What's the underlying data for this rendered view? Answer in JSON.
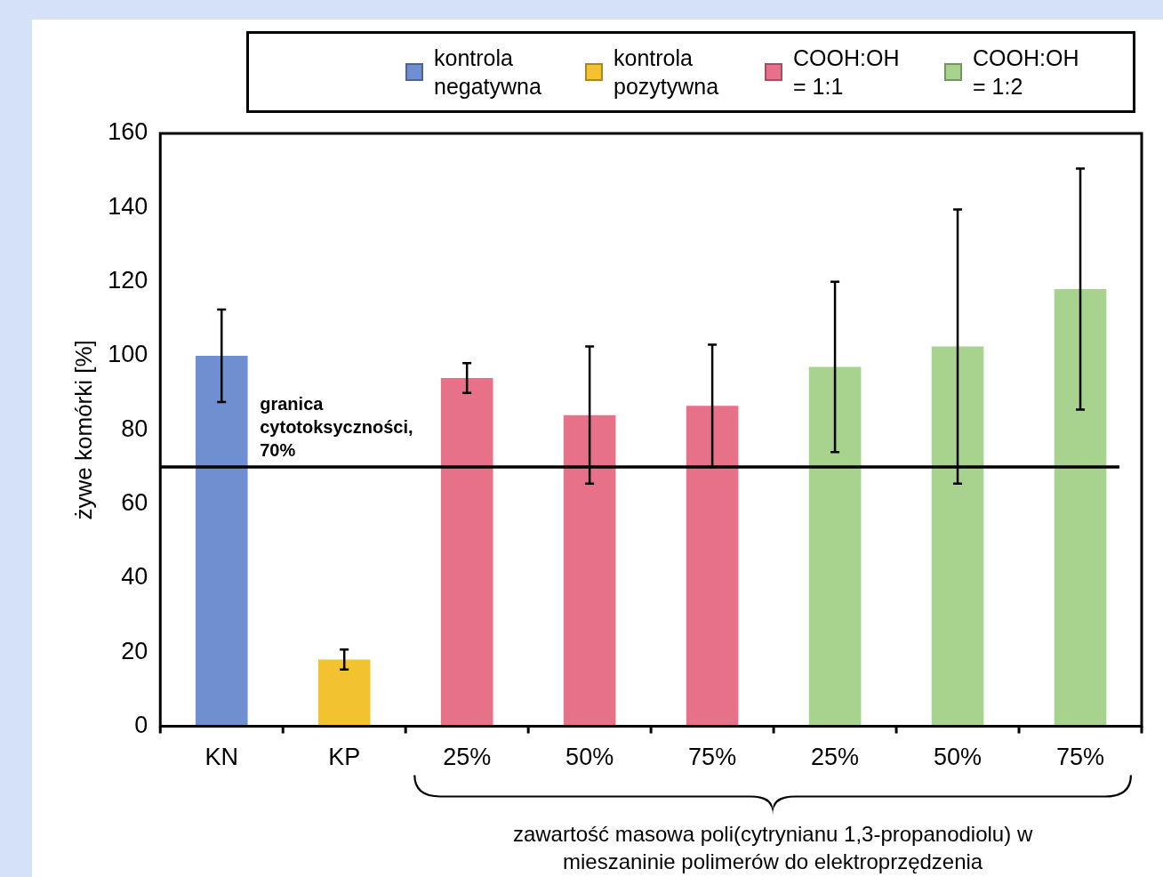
{
  "chart_data": {
    "type": "bar",
    "categories": [
      "KN",
      "KP",
      "25%",
      "50%",
      "75%",
      "25%",
      "50%",
      "75%"
    ],
    "ylabel": "żywe komórki [%]",
    "xlabel": "zawartość masowa poli(cytrynianu 1,3-propanodiolu) w mieszaninie polimerów do elektroprzędzenia",
    "ylim": [
      0,
      160
    ],
    "yticks": [
      0,
      20,
      40,
      60,
      80,
      100,
      120,
      140,
      160
    ],
    "grid": false,
    "legend": "top",
    "series": [
      {
        "name": "kontrola negatywna",
        "color": "#6f8fd0",
        "values": [
          100,
          null,
          null,
          null,
          null,
          null,
          null,
          null
        ],
        "errors": [
          12.5,
          null,
          null,
          null,
          null,
          null,
          null,
          null
        ]
      },
      {
        "name": "kontrola pozytywna",
        "color": "#f2c230",
        "values": [
          null,
          18,
          null,
          null,
          null,
          null,
          null,
          null
        ],
        "errors": [
          null,
          2.7,
          null,
          null,
          null,
          null,
          null,
          null
        ]
      },
      {
        "name": "COOH:OH = 1:1",
        "color": "#e8718a",
        "values": [
          null,
          null,
          94,
          84,
          86.5,
          null,
          null,
          null
        ],
        "errors": [
          null,
          null,
          4,
          18.5,
          16.5,
          null,
          null,
          null
        ]
      },
      {
        "name": "COOH:OH = 1:2",
        "color": "#a8d38e",
        "values": [
          null,
          null,
          null,
          null,
          null,
          97,
          102.5,
          118
        ],
        "errors": [
          null,
          null,
          null,
          null,
          null,
          23,
          37,
          32.5
        ]
      }
    ],
    "ref_lines": [
      {
        "axis": "y",
        "value": 70,
        "label": "granica cytotoksyczności, 70%",
        "color": "#000000"
      }
    ]
  }
}
